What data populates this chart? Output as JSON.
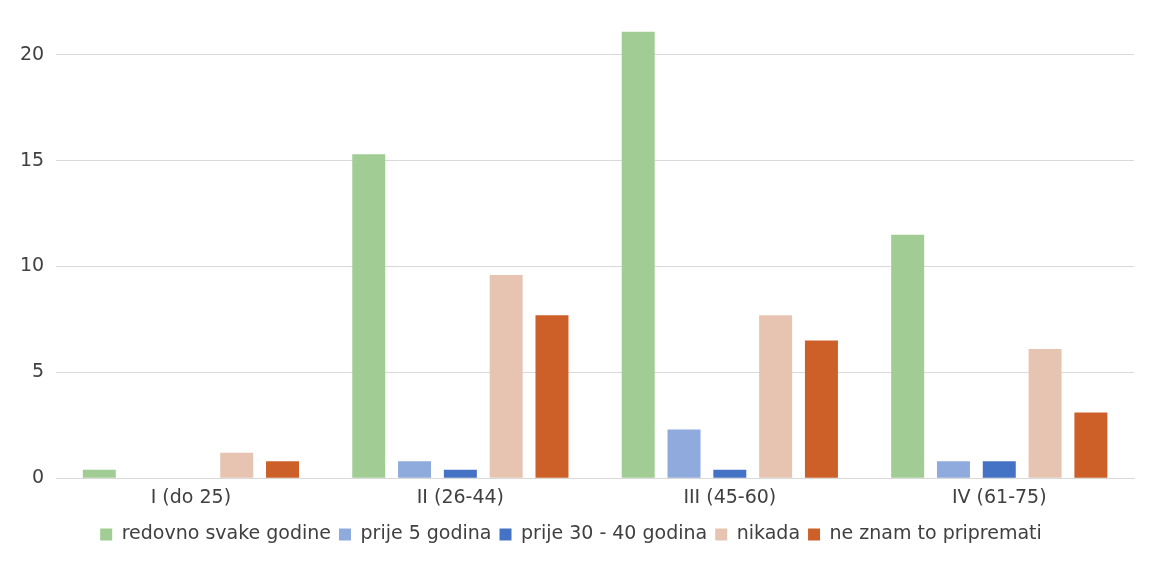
{
  "chart_data": {
    "type": "bar",
    "categories": [
      "I (do 25)",
      "II (26-44)",
      "III (45-60)",
      "IV (61-75)"
    ],
    "series": [
      {
        "name": "redovno svake godine",
        "color": "#a1cc93",
        "values": [
          0.4,
          15.3,
          21.1,
          11.5
        ]
      },
      {
        "name": "prije 5 godina",
        "color": "#8faadc",
        "values": [
          0,
          0.8,
          2.3,
          0.8
        ]
      },
      {
        "name": "prije 30 - 40 godina",
        "color": "#4472c4",
        "values": [
          0,
          0.4,
          0.4,
          0.8
        ]
      },
      {
        "name": "nikada",
        "color": "#e6c4b1",
        "values": [
          1.2,
          9.6,
          7.7,
          6.1
        ]
      },
      {
        "name": "ne znam to pripremati",
        "color": "#cc6028",
        "values": [
          0.8,
          7.7,
          6.5,
          3.1
        ]
      }
    ],
    "ylim": [
      0,
      21.1
    ],
    "yticks": [
      0,
      5,
      10,
      15,
      20
    ],
    "grid": "y",
    "legend": "bottom"
  }
}
